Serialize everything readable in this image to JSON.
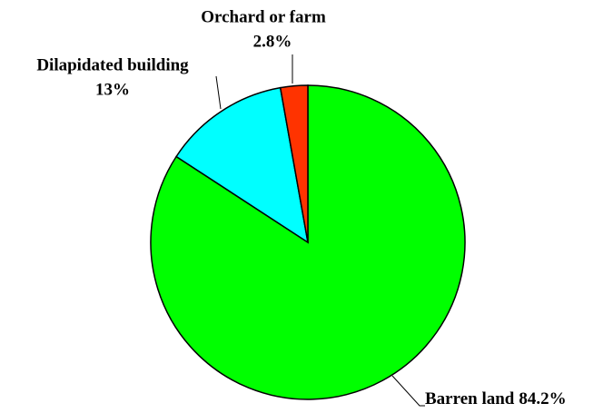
{
  "chart_data": {
    "type": "pie",
    "categories": [
      "Barren land",
      "Dilapidated building",
      "Orchard or farm"
    ],
    "values": [
      84.2,
      13,
      2.8
    ],
    "value_labels": [
      "84.2%",
      "13%",
      "2.8%"
    ],
    "colors": [
      "#00ff00",
      "#00ffff",
      "#ff3300"
    ]
  }
}
